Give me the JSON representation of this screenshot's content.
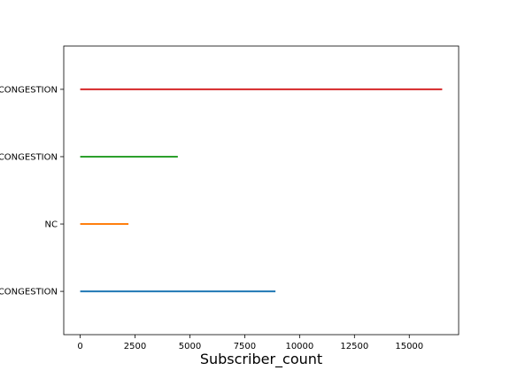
{
  "chart_data": {
    "type": "horizontal_range",
    "xlabel": "Subscriber_count",
    "ylabel": "",
    "title": "",
    "xlim": [
      -750,
      17250
    ],
    "xticks": [
      0,
      2500,
      5000,
      7500,
      10000,
      12500,
      15000
    ],
    "xtick_labels": [
      "0",
      "2500",
      "5000",
      "7500",
      "10000",
      "12500",
      "15000"
    ],
    "categories": [
      "CONGESTION",
      "NC",
      "CONGESTION",
      "CONGESTION"
    ],
    "grid": false,
    "legend": "none",
    "series": [
      {
        "category_index": 0,
        "color": "#1f77b4",
        "min": 0,
        "max": 8900
      },
      {
        "category_index": 1,
        "color": "#ff7f0e",
        "min": 0,
        "max": 2200
      },
      {
        "category_index": 2,
        "color": "#2ca02c",
        "min": 0,
        "max": 4450
      },
      {
        "category_index": 3,
        "color": "#d62728",
        "min": 0,
        "max": 16500
      }
    ]
  }
}
